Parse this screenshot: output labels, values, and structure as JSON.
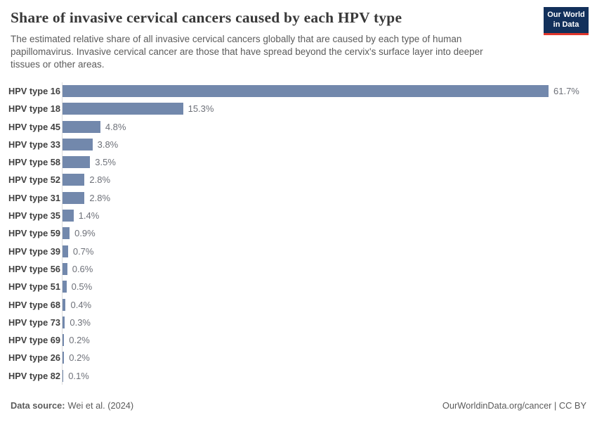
{
  "header": {
    "title": "Share of invasive cervical cancers caused by each HPV type",
    "subtitle": "The estimated relative share of all invasive cervical cancers globally that are caused by each type of human papillomavirus. Invasive cervical cancer are those that have spread beyond the cervix's surface layer into deeper tissues or other areas."
  },
  "logo": {
    "line1": "Our World",
    "line2": "in Data",
    "bg_color": "#12305b",
    "accent_color": "#e0362c"
  },
  "chart_data": {
    "type": "bar",
    "orientation": "horizontal",
    "title": "Share of invasive cervical cancers caused by each HPV type",
    "categories": [
      "HPV type 16",
      "HPV type 18",
      "HPV type 45",
      "HPV type 33",
      "HPV type 58",
      "HPV type 52",
      "HPV type 31",
      "HPV type 35",
      "HPV type 59",
      "HPV type 39",
      "HPV type 56",
      "HPV type 51",
      "HPV type 68",
      "HPV type 73",
      "HPV type 69",
      "HPV type 26",
      "HPV type 82"
    ],
    "values": [
      61.7,
      15.3,
      4.8,
      3.8,
      3.5,
      2.8,
      2.8,
      1.4,
      0.9,
      0.7,
      0.6,
      0.5,
      0.4,
      0.3,
      0.2,
      0.2,
      0.1
    ],
    "value_labels": [
      "61.7%",
      "15.3%",
      "4.8%",
      "3.8%",
      "3.5%",
      "2.8%",
      "2.8%",
      "1.4%",
      "0.9%",
      "0.7%",
      "0.6%",
      "0.5%",
      "0.4%",
      "0.3%",
      "0.2%",
      "0.2%",
      "0.1%"
    ],
    "value_suffix": "%",
    "xlim": [
      0,
      61.7
    ],
    "grid": false,
    "legend": "none",
    "bar_color": "#7288ac",
    "axis_line_color": "#dcdcdc"
  },
  "footer": {
    "source_label": "Data source:",
    "source_value": "Wei et al. (2024)",
    "right_text": "OurWorldinData.org/cancer | CC BY"
  }
}
